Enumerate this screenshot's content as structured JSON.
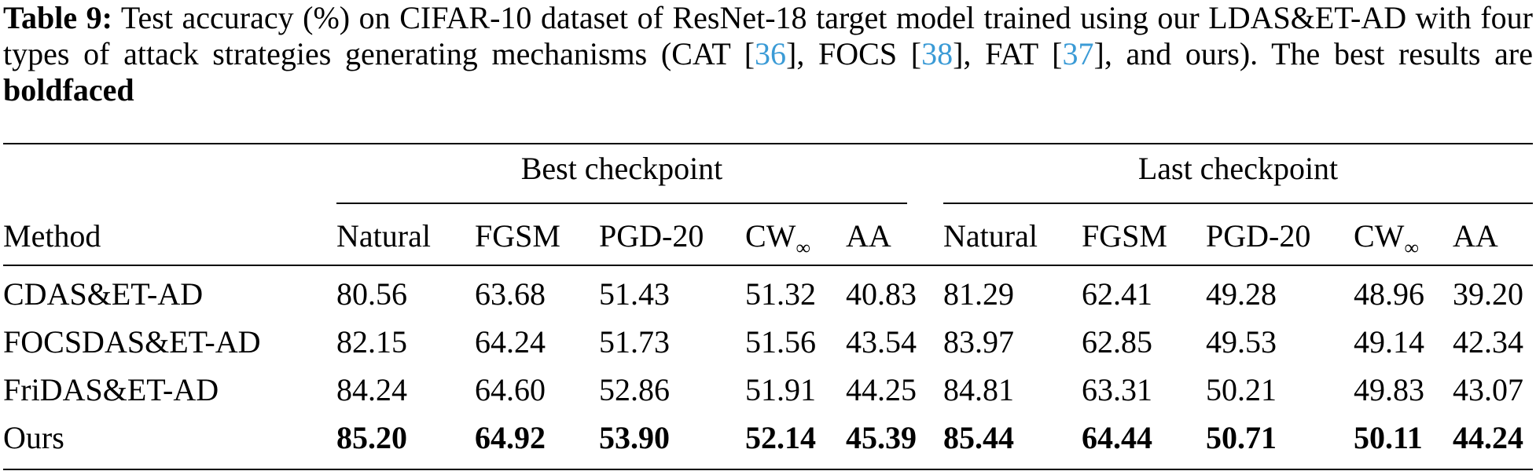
{
  "caption": {
    "label": "Table 9:",
    "text_1": " Test accuracy (%) on CIFAR-10 dataset of ResNet-18 target model trained using our LDAS&ET-AD with four types of attack strategies generating mechanisms (CAT [",
    "ref_cat": "36",
    "text_2": "], FOCS [",
    "ref_focs": "38",
    "text_3": "], FAT [",
    "ref_fat": "37",
    "text_4": "], and ours). The best results are ",
    "bold_word": "boldfaced"
  },
  "table": {
    "groups": [
      "Best checkpoint",
      "Last checkpoint"
    ],
    "method_header": "Method",
    "columns": [
      "Natural",
      "FGSM",
      "PGD-20",
      "CW",
      "AA",
      "Natural",
      "FGSM",
      "PGD-20",
      "CW",
      "AA"
    ],
    "cw_subscript": "∞",
    "rows": [
      {
        "method": "CDAS&ET-AD",
        "values": [
          "80.56",
          "63.68",
          "51.43",
          "51.32",
          "40.83",
          "81.29",
          "62.41",
          "49.28",
          "48.96",
          "39.20"
        ],
        "bold": false
      },
      {
        "method": "FOCSDAS&ET-AD",
        "values": [
          "82.15",
          "64.24",
          "51.73",
          "51.56",
          "43.54",
          "83.97",
          "62.85",
          "49.53",
          "49.14",
          "42.34"
        ],
        "bold": false
      },
      {
        "method": "FriDAS&ET-AD",
        "values": [
          "84.24",
          "64.60",
          "52.86",
          "51.91",
          "44.25",
          "84.81",
          "63.31",
          "50.21",
          "49.83",
          "43.07"
        ],
        "bold": false
      },
      {
        "method": "Ours",
        "values": [
          "85.20",
          "64.92",
          "53.90",
          "52.14",
          "45.39",
          "85.44",
          "64.44",
          "50.71",
          "50.11",
          "44.24"
        ],
        "bold": true
      }
    ]
  }
}
